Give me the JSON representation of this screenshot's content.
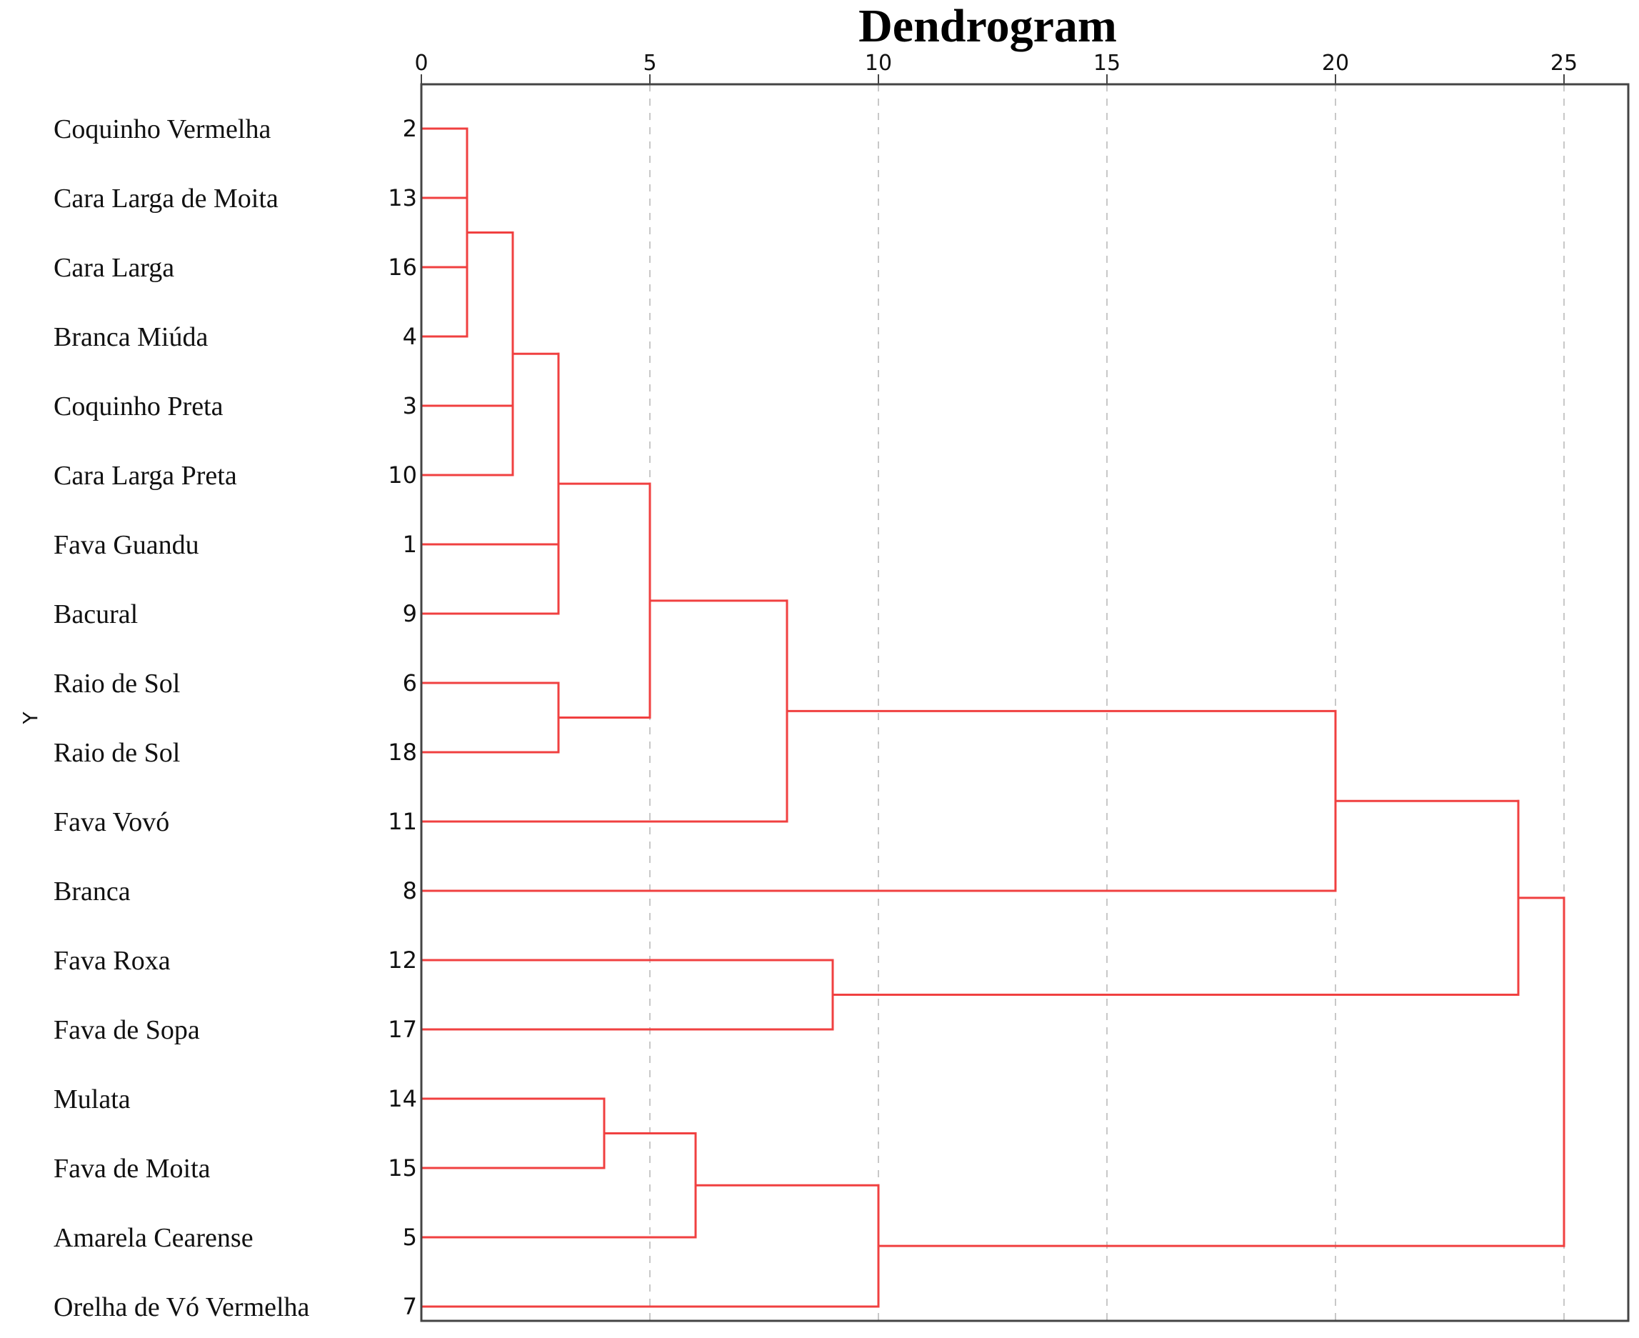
{
  "chart_data": {
    "type": "dendrogram",
    "title": "Dendrogram",
    "ylabel": "Y",
    "xlabel": "",
    "xlim": [
      0,
      26
    ],
    "xticks": [
      0,
      5,
      10,
      15,
      20,
      25
    ],
    "grid": "vertical dashed",
    "line_color": "#f04040",
    "leaves": [
      {
        "name": "Coquinho Vermelha",
        "id": "2"
      },
      {
        "name": "Cara Larga de Moita",
        "id": "13"
      },
      {
        "name": "Cara Larga",
        "id": "16"
      },
      {
        "name": "Branca Miúda",
        "id": "4"
      },
      {
        "name": "Coquinho Preta",
        "id": "3"
      },
      {
        "name": "Cara Larga Preta",
        "id": "10"
      },
      {
        "name": "Fava Guandu",
        "id": "1"
      },
      {
        "name": "Bacural",
        "id": "9"
      },
      {
        "name": "Raio de Sol",
        "id": "6"
      },
      {
        "name": "Raio de Sol",
        "id": "18"
      },
      {
        "name": "Fava Vovó",
        "id": "11"
      },
      {
        "name": "Branca",
        "id": "8"
      },
      {
        "name": "Fava Roxa",
        "id": "12"
      },
      {
        "name": "Fava de Sopa",
        "id": "17"
      },
      {
        "name": "Mulata",
        "id": "14"
      },
      {
        "name": "Fava de Moita",
        "id": "15"
      },
      {
        "name": "Amarela Cearense",
        "id": "5"
      },
      {
        "name": "Orelha de Vó Vermelha",
        "id": "7"
      }
    ],
    "merges": [
      {
        "children": [
          "L0",
          "L1",
          "L2",
          "L3"
        ],
        "height": 1
      },
      {
        "children": [
          "M0",
          "L4",
          "L5"
        ],
        "height": 2
      },
      {
        "children": [
          "M1",
          "L6",
          "L7"
        ],
        "height": 3
      },
      {
        "children": [
          "L8",
          "L9"
        ],
        "height": 3
      },
      {
        "children": [
          "M2",
          "M3"
        ],
        "height": 5
      },
      {
        "children": [
          "M4",
          "L10"
        ],
        "height": 8
      },
      {
        "children": [
          "M5",
          "L11"
        ],
        "height": 20
      },
      {
        "children": [
          "L12",
          "L13"
        ],
        "height": 9
      },
      {
        "children": [
          "M6",
          "M7"
        ],
        "height": 24
      },
      {
        "children": [
          "L14",
          "L15"
        ],
        "height": 4
      },
      {
        "children": [
          "M9",
          "L16"
        ],
        "height": 6
      },
      {
        "children": [
          "M10",
          "L17"
        ],
        "height": 10
      },
      {
        "children": [
          "M8",
          "M11"
        ],
        "height": 25
      }
    ]
  }
}
